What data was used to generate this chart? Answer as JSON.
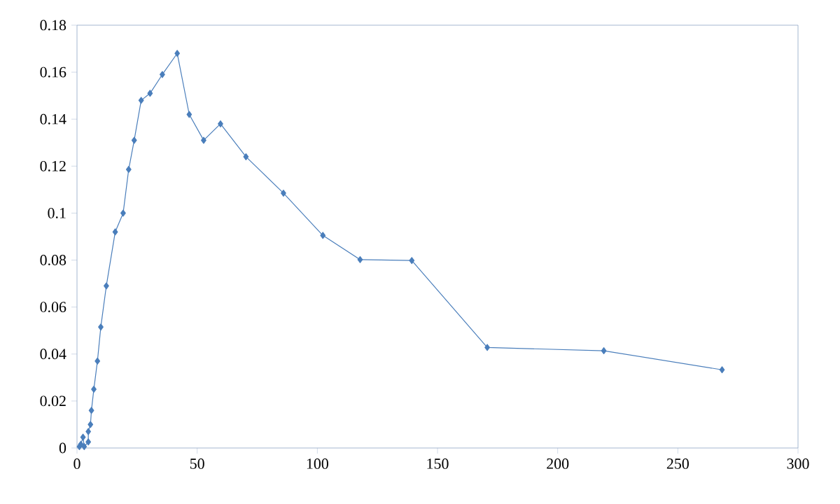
{
  "chart_data": {
    "type": "line",
    "color": "#4a7ebb",
    "marker": "diamond",
    "line_style": "solid",
    "grid": false,
    "x": [
      1,
      1.6,
      2.5,
      3,
      4.7,
      4.7,
      5.6,
      6.0,
      7.0,
      8.5,
      9.9,
      12.2,
      15.9,
      19.2,
      21.5,
      23.8,
      26.7,
      30.4,
      35.5,
      41.7,
      46.7,
      52.7,
      59.7,
      70.3,
      85.9,
      102.3,
      117.8,
      139.3,
      170.7,
      219.2,
      268.4
    ],
    "values": [
      0.0006,
      0.0016,
      0.0046,
      0.0006,
      0.0026,
      0.007,
      0.01,
      0.016,
      0.025,
      0.037,
      0.0515,
      0.069,
      0.092,
      0.1,
      0.1186,
      0.131,
      0.148,
      0.151,
      0.159,
      0.168,
      0.142,
      0.131,
      0.138,
      0.124,
      0.1085,
      0.0905,
      0.0802,
      0.0798,
      0.0428,
      0.0414,
      0.0333
    ],
    "xlim": [
      0,
      300
    ],
    "xticks": [
      0,
      50,
      100,
      150,
      200,
      250,
      300
    ],
    "ylim": [
      0,
      0.18
    ],
    "yticks": [
      0,
      0.02,
      0.04,
      0.06,
      0.08,
      0.1,
      0.12,
      0.14,
      0.16,
      0.18
    ]
  }
}
